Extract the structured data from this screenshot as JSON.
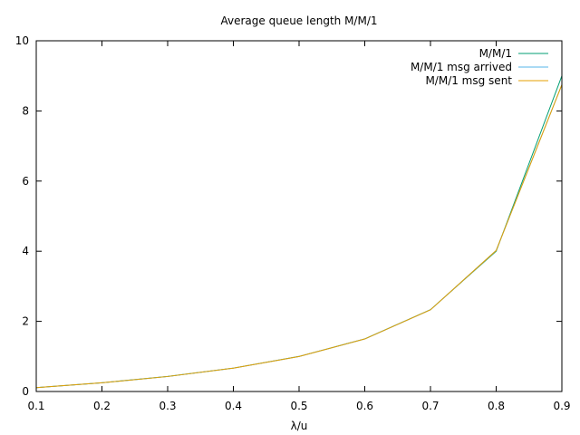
{
  "chart_data": {
    "type": "line",
    "title": "Average queue length M/M/1",
    "xlabel": "λ/u",
    "ylabel": "",
    "xlim": [
      0.1,
      0.9
    ],
    "ylim": [
      0,
      10
    ],
    "xticks": [
      0.1,
      0.2,
      0.3,
      0.4,
      0.5,
      0.6,
      0.7,
      0.8,
      0.9
    ],
    "yticks": [
      0,
      2,
      4,
      6,
      8,
      10
    ],
    "grid": false,
    "legend_position": "top-right",
    "x": [
      0.1,
      0.2,
      0.3,
      0.4,
      0.5,
      0.6,
      0.7,
      0.8,
      0.9
    ],
    "series": [
      {
        "name": "M/M/1",
        "color": "#009e73",
        "values": [
          0.111,
          0.25,
          0.429,
          0.667,
          1.0,
          1.5,
          2.333,
          4.0,
          9.0
        ]
      },
      {
        "name": "M/M/1 msg arrived",
        "color": "#56b4e9",
        "values": [
          0.111,
          0.25,
          0.428,
          0.666,
          0.998,
          1.498,
          2.33,
          4.02,
          8.75
        ]
      },
      {
        "name": "M/M/1 msg sent",
        "color": "#e69f00",
        "values": [
          0.111,
          0.25,
          0.428,
          0.666,
          0.998,
          1.498,
          2.33,
          4.02,
          8.75
        ]
      }
    ]
  }
}
